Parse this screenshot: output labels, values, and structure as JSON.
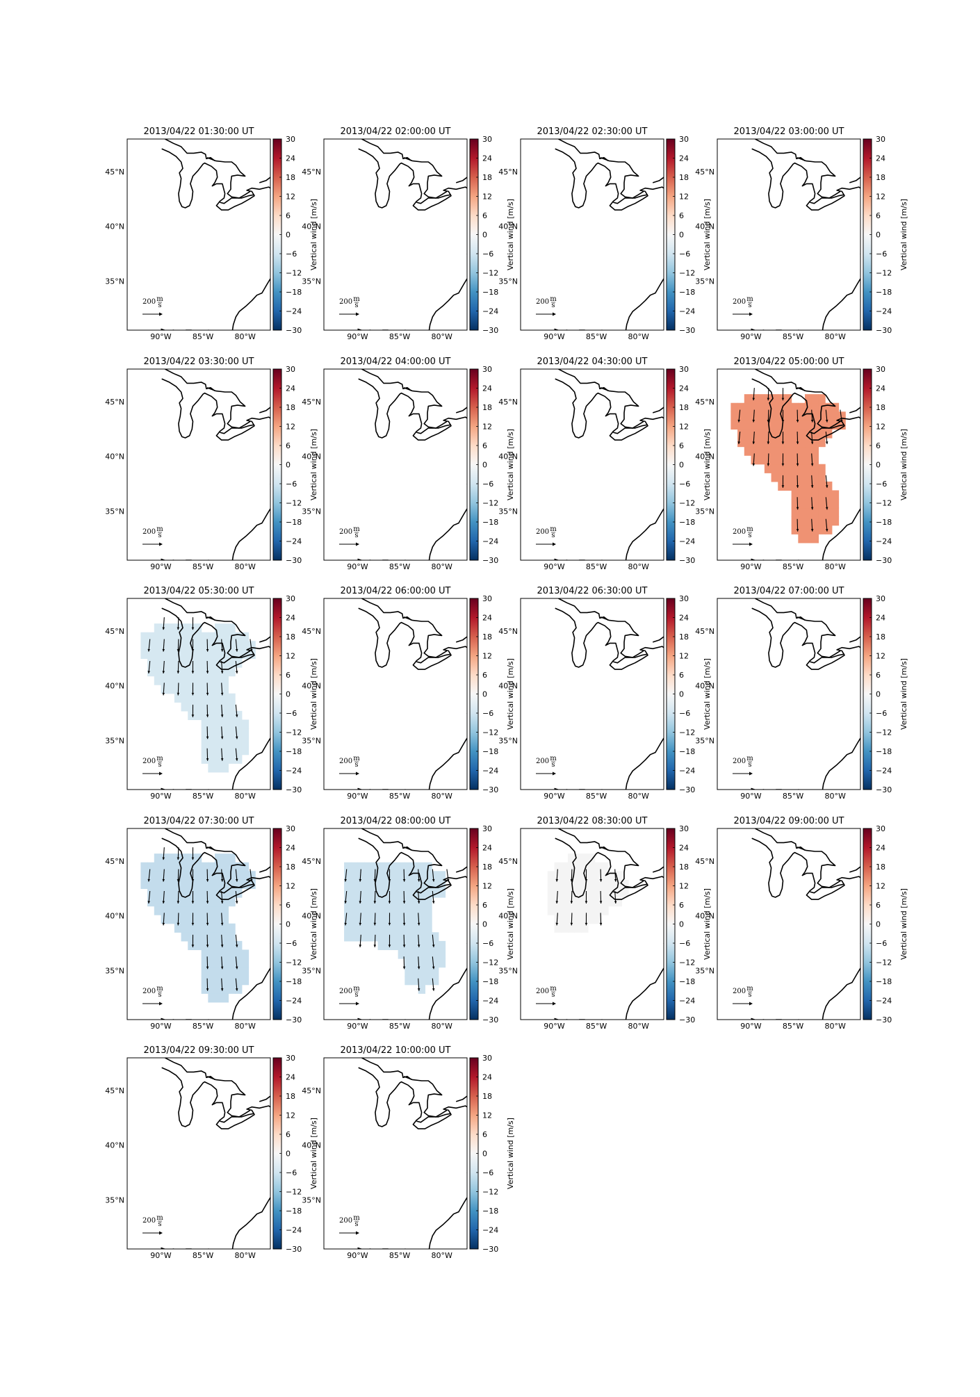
{
  "figure": {
    "colorbar": {
      "label": "Vertical wind [m/s]",
      "ticks": [
        "30",
        "24",
        "18",
        "12",
        "6",
        "0",
        "−6",
        "−12",
        "−18",
        "−24",
        "−30"
      ],
      "cmap": "RdBu_r",
      "vmin": -30,
      "vmax": 30
    },
    "axes": {
      "lat_ticks": [
        "45°N",
        "40°N",
        "35°N"
      ],
      "lon_ticks": [
        "90°W",
        "85°W",
        "80°W"
      ]
    },
    "scale_arrow": {
      "label_value": "200",
      "label_unit_num": "m",
      "label_unit_den": "s"
    },
    "panels": [
      {
        "title": "2013/04/22 01:30:00 UT",
        "vertical_wind": null,
        "region": "none"
      },
      {
        "title": "2013/04/22 02:00:00 UT",
        "vertical_wind": null,
        "region": "none"
      },
      {
        "title": "2013/04/22 02:30:00 UT",
        "vertical_wind": null,
        "region": "none"
      },
      {
        "title": "2013/04/22 03:00:00 UT",
        "vertical_wind": null,
        "region": "none"
      },
      {
        "title": "2013/04/22 03:30:00 UT",
        "vertical_wind": null,
        "region": "none"
      },
      {
        "title": "2013/04/22 04:00:00 UT",
        "vertical_wind": null,
        "region": "none"
      },
      {
        "title": "2013/04/22 04:30:00 UT",
        "vertical_wind": null,
        "region": "none"
      },
      {
        "title": "2013/04/22 05:00:00 UT",
        "vertical_wind": 13,
        "region": "full",
        "color": "#ef9273"
      },
      {
        "title": "2013/04/22 05:30:00 UT",
        "vertical_wind": -5,
        "region": "full",
        "color": "#d6e8f1"
      },
      {
        "title": "2013/04/22 06:00:00 UT",
        "vertical_wind": null,
        "region": "none"
      },
      {
        "title": "2013/04/22 06:30:00 UT",
        "vertical_wind": null,
        "region": "none"
      },
      {
        "title": "2013/04/22 07:00:00 UT",
        "vertical_wind": null,
        "region": "none"
      },
      {
        "title": "2013/04/22 07:30:00 UT",
        "vertical_wind": -8,
        "region": "full",
        "color": "#c3dcec"
      },
      {
        "title": "2013/04/22 08:00:00 UT",
        "vertical_wind": -7,
        "region": "wide",
        "color": "#cbe1ee"
      },
      {
        "title": "2013/04/22 08:30:00 UT",
        "vertical_wind": -1,
        "region": "north",
        "color": "#f4f4f4"
      },
      {
        "title": "2013/04/22 09:00:00 UT",
        "vertical_wind": null,
        "region": "none"
      },
      {
        "title": "2013/04/22 09:30:00 UT",
        "vertical_wind": null,
        "region": "none"
      },
      {
        "title": "2013/04/22 10:00:00 UT",
        "vertical_wind": null,
        "region": "none"
      }
    ]
  }
}
